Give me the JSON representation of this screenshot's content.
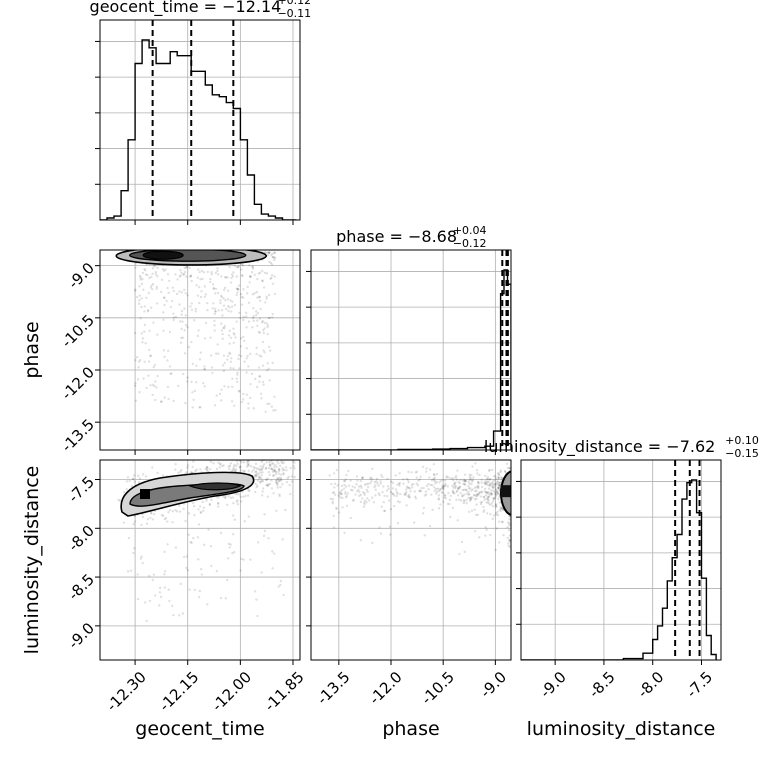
{
  "chart_data": {
    "type": "corner",
    "parameters": [
      "geocent_time",
      "phase",
      "luminosity_distance"
    ],
    "axis_labels": {
      "geocent_time": "geocent_time",
      "phase": "phase",
      "luminosity_distance": "luminosity_distance"
    },
    "ranges": {
      "geocent_time": [
        -12.4,
        -11.83
      ],
      "phase": [
        -14.3,
        -8.55
      ],
      "luminosity_distance": [
        -9.35,
        -7.3
      ]
    },
    "ticks": {
      "geocent_time": [
        "-12.30",
        "-12.15",
        "-12.00",
        "-11.85"
      ],
      "phase": [
        "-13.5",
        "-12.0",
        "-10.5",
        "-9.0"
      ],
      "luminosity_distance": [
        "-9.0",
        "-8.5",
        "-8.0",
        "-7.5"
      ]
    },
    "tick_values": {
      "geocent_time": [
        -12.3,
        -12.15,
        -12.0,
        -11.85
      ],
      "phase": [
        -13.5,
        -12.0,
        -10.5,
        -9.0
      ],
      "luminosity_distance": [
        -9.0,
        -8.5,
        -8.0,
        -7.5
      ]
    },
    "summaries": {
      "geocent_time": {
        "prefix": "geocent_time = ",
        "median": "−12.14",
        "plus": "+0.12",
        "minus": "−0.11"
      },
      "phase": {
        "prefix": "phase = ",
        "median": "−8.68",
        "plus": "+0.04",
        "minus": "−0.12"
      },
      "luminosity_distance": {
        "prefix": "luminosity_distance = ",
        "median": "−7.62",
        "plus": "+0.10",
        "minus": "−0.15"
      }
    },
    "quantiles": {
      "geocent_time": [
        -12.25,
        -12.14,
        -12.02
      ],
      "phase": [
        -8.8,
        -8.68,
        -8.64
      ],
      "luminosity_distance": [
        -7.77,
        -7.62,
        -7.52
      ]
    },
    "histograms": {
      "geocent_time": {
        "edges": [
          -12.4,
          -12.38,
          -12.36,
          -12.34,
          -12.32,
          -12.3,
          -12.28,
          -12.26,
          -12.24,
          -12.22,
          -12.2,
          -12.18,
          -12.16,
          -12.14,
          -12.12,
          -12.1,
          -12.08,
          -12.06,
          -12.04,
          -12.02,
          -12.0,
          -11.98,
          -11.96,
          -11.94,
          -11.92,
          -11.9,
          -11.88,
          -11.86,
          -11.84
        ],
        "counts": [
          0,
          1,
          2,
          15,
          41,
          80,
          92,
          88,
          80,
          80,
          86,
          84,
          84,
          76,
          76,
          69,
          64,
          63,
          60,
          57,
          41,
          23,
          8,
          3,
          2,
          1,
          0,
          0
        ]
      },
      "phase": {
        "edges": [
          -14.3,
          -13.8,
          -13.3,
          -12.8,
          -12.3,
          -11.8,
          -11.3,
          -10.8,
          -10.3,
          -9.8,
          -9.3,
          -9.05,
          -8.85,
          -8.75,
          -8.65,
          -8.55
        ],
        "counts": [
          0,
          0,
          0,
          0,
          0,
          1,
          1,
          2,
          3,
          5,
          8,
          40,
          330,
          380,
          350
        ]
      },
      "luminosity_distance": {
        "edges": [
          -9.35,
          -8.3,
          -8.1,
          -8.0,
          -7.95,
          -7.9,
          -7.85,
          -7.8,
          -7.75,
          -7.7,
          -7.65,
          -7.6,
          -7.55,
          -7.5,
          -7.45,
          -7.4,
          -7.35
        ],
        "counts": [
          0,
          1,
          5,
          15,
          25,
          38,
          58,
          75,
          92,
          118,
          130,
          132,
          108,
          60,
          18,
          4
        ]
      }
    },
    "grid": true,
    "legend": "none"
  }
}
